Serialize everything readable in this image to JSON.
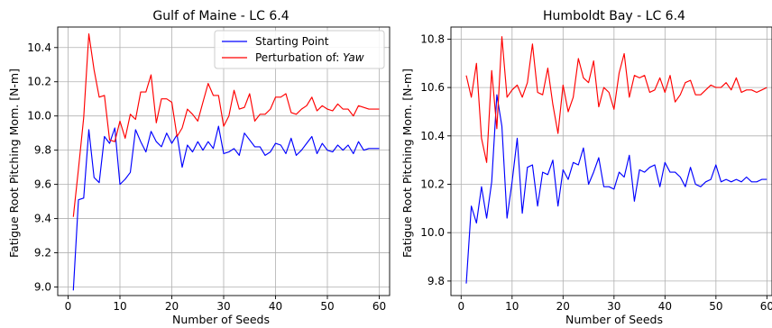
{
  "figure": {
    "ylabel": "Fatigue Root Pitching Mom. [N-m]",
    "xlabel": "Number of Seeds"
  },
  "legend": {
    "entries": [
      {
        "label": "Starting Point",
        "color": "#0000ff",
        "italic": ""
      },
      {
        "label": "Perturbation of: ",
        "color": "#ff0000",
        "italic": "Yaw"
      }
    ],
    "location": "upper-right of left panel"
  },
  "chart_data": [
    {
      "type": "line",
      "title": "Gulf of Maine - LC 6.4",
      "xlabel": "Number of Seeds",
      "ylabel": "Fatigue Root Pitching Mom. [N-m]",
      "xlim": [
        -2,
        62
      ],
      "ylim": [
        8.95,
        10.52
      ],
      "xticks": [
        0,
        10,
        20,
        30,
        40,
        50,
        60
      ],
      "yticks": [
        9.0,
        9.2,
        9.4,
        9.6,
        9.8,
        10.0,
        10.2,
        10.4
      ],
      "ytick_labels": [
        "9.0",
        "9.2",
        "9.4",
        "9.6",
        "9.8",
        "10.0",
        "10.2",
        "10.4"
      ],
      "grid": true,
      "series": [
        {
          "name": "Starting Point",
          "color": "#0000ff",
          "x": [
            1,
            2,
            3,
            4,
            5,
            6,
            7,
            8,
            9,
            10,
            11,
            12,
            13,
            14,
            15,
            16,
            17,
            18,
            19,
            20,
            21,
            22,
            23,
            24,
            25,
            26,
            27,
            28,
            29,
            30,
            31,
            32,
            33,
            34,
            35,
            36,
            37,
            38,
            39,
            40,
            41,
            42,
            43,
            44,
            45,
            46,
            47,
            48,
            49,
            50,
            51,
            52,
            53,
            54,
            55,
            56,
            57,
            58,
            59,
            60
          ],
          "values": [
            8.98,
            9.51,
            9.52,
            9.92,
            9.64,
            9.61,
            9.88,
            9.84,
            9.93,
            9.6,
            9.63,
            9.67,
            9.92,
            9.85,
            9.79,
            9.91,
            9.85,
            9.82,
            9.9,
            9.84,
            9.89,
            9.7,
            9.83,
            9.79,
            9.85,
            9.8,
            9.85,
            9.81,
            9.94,
            9.78,
            9.79,
            9.81,
            9.77,
            9.9,
            9.86,
            9.82,
            9.82,
            9.77,
            9.79,
            9.84,
            9.83,
            9.78,
            9.87,
            9.77,
            9.8,
            9.84,
            9.88,
            9.78,
            9.84,
            9.8,
            9.79,
            9.83,
            9.8,
            9.83,
            9.78,
            9.85,
            9.8,
            9.81,
            9.81,
            9.81
          ]
        },
        {
          "name": "Perturbation of: Yaw",
          "color": "#ff0000",
          "x": [
            1,
            2,
            3,
            4,
            5,
            6,
            7,
            8,
            9,
            10,
            11,
            12,
            13,
            14,
            15,
            16,
            17,
            18,
            19,
            20,
            21,
            22,
            23,
            24,
            25,
            26,
            27,
            28,
            29,
            30,
            31,
            32,
            33,
            34,
            35,
            36,
            37,
            38,
            39,
            40,
            41,
            42,
            43,
            44,
            45,
            46,
            47,
            48,
            49,
            50,
            51,
            52,
            53,
            54,
            55,
            56,
            57,
            58,
            59,
            60
          ],
          "values": [
            9.41,
            9.69,
            9.99,
            10.48,
            10.27,
            10.11,
            10.12,
            9.86,
            9.85,
            9.97,
            9.87,
            10.01,
            9.98,
            10.14,
            10.14,
            10.24,
            9.96,
            10.1,
            10.1,
            10.08,
            9.88,
            9.93,
            10.04,
            10.01,
            9.97,
            10.08,
            10.19,
            10.12,
            10.12,
            9.94,
            10.0,
            10.15,
            10.04,
            10.05,
            10.13,
            9.97,
            10.01,
            10.01,
            10.04,
            10.11,
            10.11,
            10.13,
            10.02,
            10.01,
            10.04,
            10.06,
            10.11,
            10.03,
            10.06,
            10.04,
            10.03,
            10.07,
            10.04,
            10.04,
            10.0,
            10.06,
            10.05,
            10.04,
            10.04,
            10.04
          ]
        }
      ]
    },
    {
      "type": "line",
      "title": "Humboldt Bay - LC 6.4",
      "xlabel": "Number of Seeds",
      "ylabel": "",
      "xlim": [
        -2,
        61
      ],
      "ylim": [
        9.74,
        10.85
      ],
      "xticks": [
        0,
        10,
        20,
        30,
        40,
        50,
        60
      ],
      "yticks": [
        9.8,
        10.0,
        10.2,
        10.4,
        10.6,
        10.8
      ],
      "ytick_labels": [
        "9.8",
        "10.0",
        "10.2",
        "10.4",
        "10.6",
        "10.8"
      ],
      "grid": true,
      "series": [
        {
          "name": "Starting Point",
          "color": "#0000ff",
          "x": [
            1,
            2,
            3,
            4,
            5,
            6,
            7,
            8,
            9,
            10,
            11,
            12,
            13,
            14,
            15,
            16,
            17,
            18,
            19,
            20,
            21,
            22,
            23,
            24,
            25,
            26,
            27,
            28,
            29,
            30,
            31,
            32,
            33,
            34,
            35,
            36,
            37,
            38,
            39,
            40,
            41,
            42,
            43,
            44,
            45,
            46,
            47,
            48,
            49,
            50,
            51,
            52,
            53,
            54,
            55,
            56,
            57,
            58,
            59,
            60
          ],
          "values": [
            9.79,
            10.11,
            10.04,
            10.19,
            10.06,
            10.21,
            10.57,
            10.44,
            10.06,
            10.21,
            10.39,
            10.08,
            10.27,
            10.28,
            10.11,
            10.25,
            10.24,
            10.3,
            10.11,
            10.26,
            10.22,
            10.29,
            10.28,
            10.35,
            10.2,
            10.25,
            10.31,
            10.19,
            10.19,
            10.18,
            10.25,
            10.23,
            10.32,
            10.13,
            10.26,
            10.25,
            10.27,
            10.28,
            10.19,
            10.29,
            10.25,
            10.25,
            10.23,
            10.19,
            10.27,
            10.2,
            10.19,
            10.21,
            10.22,
            10.28,
            10.21,
            10.22,
            10.21,
            10.22,
            10.21,
            10.23,
            10.21,
            10.21,
            10.22,
            10.22
          ]
        },
        {
          "name": "Perturbation of: Yaw",
          "color": "#ff0000",
          "x": [
            1,
            2,
            3,
            4,
            5,
            6,
            7,
            8,
            9,
            10,
            11,
            12,
            13,
            14,
            15,
            16,
            17,
            18,
            19,
            20,
            21,
            22,
            23,
            24,
            25,
            26,
            27,
            28,
            29,
            30,
            31,
            32,
            33,
            34,
            35,
            36,
            37,
            38,
            39,
            40,
            41,
            42,
            43,
            44,
            45,
            46,
            47,
            48,
            49,
            50,
            51,
            52,
            53,
            54,
            55,
            56,
            57,
            58,
            59,
            60
          ],
          "values": [
            10.65,
            10.56,
            10.7,
            10.39,
            10.29,
            10.67,
            10.43,
            10.81,
            10.56,
            10.59,
            10.61,
            10.56,
            10.62,
            10.78,
            10.58,
            10.57,
            10.68,
            10.53,
            10.41,
            10.61,
            10.5,
            10.56,
            10.72,
            10.64,
            10.62,
            10.71,
            10.52,
            10.6,
            10.58,
            10.51,
            10.66,
            10.74,
            10.56,
            10.65,
            10.64,
            10.65,
            10.58,
            10.59,
            10.64,
            10.58,
            10.65,
            10.54,
            10.57,
            10.62,
            10.63,
            10.57,
            10.57,
            10.59,
            10.61,
            10.6,
            10.6,
            10.62,
            10.59,
            10.64,
            10.58,
            10.59,
            10.59,
            10.58,
            10.59,
            10.6
          ]
        }
      ]
    }
  ]
}
